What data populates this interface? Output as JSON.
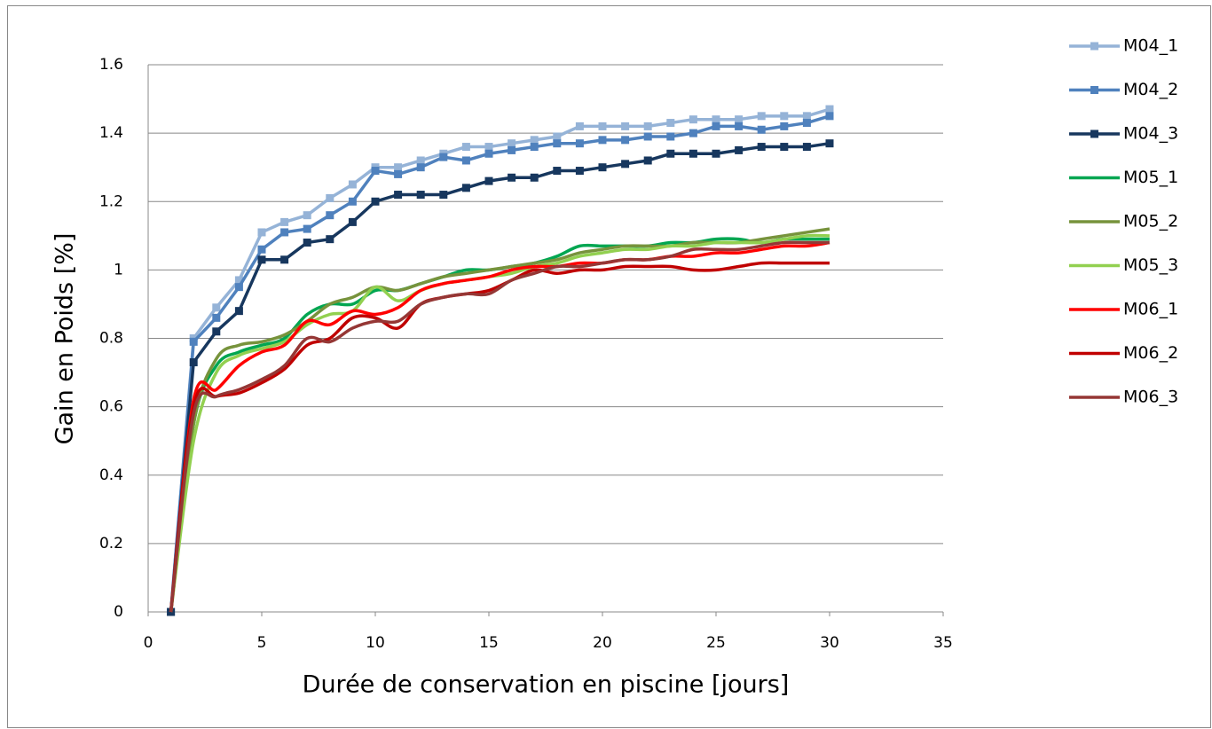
{
  "chart_data": {
    "type": "line",
    "x_label": "Durée de conservation en piscine [jours]",
    "y_label": "Gain en Poids [%]",
    "x": [
      1,
      2,
      3,
      4,
      5,
      6,
      7,
      8,
      9,
      10,
      11,
      12,
      13,
      14,
      15,
      16,
      17,
      18,
      19,
      20,
      21,
      22,
      23,
      24,
      25,
      26,
      27,
      28,
      29,
      30
    ],
    "xlim": [
      0,
      35
    ],
    "xticks": [
      0,
      5,
      10,
      15,
      20,
      25,
      30,
      35
    ],
    "ylim": [
      0,
      1.6
    ],
    "yticks": [
      0,
      0.2,
      0.4,
      0.6,
      0.8,
      1,
      1.2,
      1.4,
      1.6
    ],
    "grid": true,
    "legend": "right",
    "series": [
      {
        "name": "M04_1",
        "color": "#95b3d7",
        "marker": "square",
        "smooth": false,
        "values": [
          0,
          0.8,
          0.89,
          0.97,
          1.11,
          1.14,
          1.16,
          1.21,
          1.25,
          1.3,
          1.3,
          1.32,
          1.34,
          1.36,
          1.36,
          1.37,
          1.38,
          1.39,
          1.42,
          1.42,
          1.42,
          1.42,
          1.43,
          1.44,
          1.44,
          1.44,
          1.45,
          1.45,
          1.45,
          1.47
        ]
      },
      {
        "name": "M04_2",
        "color": "#4f81bd",
        "marker": "square",
        "smooth": false,
        "values": [
          0,
          0.79,
          0.86,
          0.95,
          1.06,
          1.11,
          1.12,
          1.16,
          1.2,
          1.29,
          1.28,
          1.3,
          1.33,
          1.32,
          1.34,
          1.35,
          1.36,
          1.37,
          1.37,
          1.38,
          1.38,
          1.39,
          1.39,
          1.4,
          1.42,
          1.42,
          1.41,
          1.42,
          1.43,
          1.45
        ]
      },
      {
        "name": "M04_3",
        "color": "#17375e",
        "marker": "square",
        "smooth": false,
        "values": [
          0,
          0.73,
          0.82,
          0.88,
          1.03,
          1.03,
          1.08,
          1.09,
          1.14,
          1.2,
          1.22,
          1.22,
          1.22,
          1.24,
          1.26,
          1.27,
          1.27,
          1.29,
          1.29,
          1.3,
          1.31,
          1.32,
          1.34,
          1.34,
          1.34,
          1.35,
          1.36,
          1.36,
          1.36,
          1.37
        ]
      },
      {
        "name": "M05_1",
        "color": "#00a651",
        "smooth": true,
        "values": [
          0,
          0.55,
          0.72,
          0.76,
          0.78,
          0.8,
          0.87,
          0.9,
          0.9,
          0.94,
          0.94,
          0.96,
          0.98,
          1.0,
          1.0,
          1.01,
          1.02,
          1.04,
          1.07,
          1.07,
          1.07,
          1.07,
          1.08,
          1.08,
          1.09,
          1.09,
          1.08,
          1.09,
          1.09,
          1.09
        ]
      },
      {
        "name": "M05_2",
        "color": "#77933c",
        "smooth": true,
        "values": [
          0,
          0.55,
          0.74,
          0.78,
          0.79,
          0.81,
          0.85,
          0.9,
          0.92,
          0.95,
          0.94,
          0.96,
          0.98,
          0.99,
          1.0,
          1.01,
          1.02,
          1.03,
          1.05,
          1.06,
          1.07,
          1.07,
          1.07,
          1.08,
          1.08,
          1.08,
          1.09,
          1.1,
          1.11,
          1.12
        ]
      },
      {
        "name": "M05_3",
        "color": "#92d050",
        "smooth": true,
        "values": [
          0,
          0.5,
          0.7,
          0.75,
          0.77,
          0.79,
          0.84,
          0.87,
          0.88,
          0.95,
          0.91,
          0.94,
          0.96,
          0.97,
          0.98,
          0.99,
          1.01,
          1.02,
          1.04,
          1.05,
          1.06,
          1.06,
          1.07,
          1.07,
          1.08,
          1.08,
          1.08,
          1.09,
          1.1,
          1.1
        ]
      },
      {
        "name": "M06_1",
        "color": "#ff0000",
        "smooth": true,
        "values": [
          0,
          0.62,
          0.65,
          0.72,
          0.76,
          0.78,
          0.85,
          0.84,
          0.88,
          0.87,
          0.89,
          0.94,
          0.96,
          0.97,
          0.98,
          1.0,
          1.01,
          1.01,
          1.02,
          1.02,
          1.03,
          1.03,
          1.04,
          1.04,
          1.05,
          1.05,
          1.06,
          1.07,
          1.07,
          1.08
        ]
      },
      {
        "name": "M06_2",
        "color": "#c00000",
        "smooth": true,
        "values": [
          0,
          0.6,
          0.63,
          0.64,
          0.67,
          0.71,
          0.78,
          0.8,
          0.86,
          0.86,
          0.83,
          0.9,
          0.92,
          0.93,
          0.94,
          0.97,
          1.0,
          0.99,
          1.0,
          1.0,
          1.01,
          1.01,
          1.01,
          1.0,
          1.0,
          1.01,
          1.02,
          1.02,
          1.02,
          1.02
        ]
      },
      {
        "name": "M06_3",
        "color": "#953735",
        "smooth": true,
        "values": [
          0,
          0.58,
          0.63,
          0.65,
          0.68,
          0.72,
          0.8,
          0.79,
          0.83,
          0.85,
          0.85,
          0.9,
          0.92,
          0.93,
          0.93,
          0.97,
          0.99,
          1.01,
          1.01,
          1.02,
          1.03,
          1.03,
          1.04,
          1.06,
          1.06,
          1.06,
          1.07,
          1.08,
          1.08,
          1.08
        ]
      }
    ]
  }
}
